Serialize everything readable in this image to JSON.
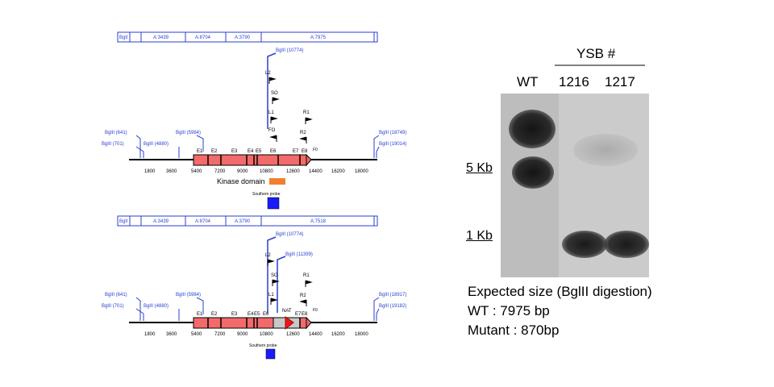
{
  "map_wt": {
    "segments": [
      "BglI",
      "A:3439",
      "A:8704",
      "A:3790",
      "A:7975"
    ],
    "site_top": "BglII (10774)",
    "left_sites": [
      "BglII (641)",
      "BglII (701)",
      "BglII (4880)",
      "BglII (5984)"
    ],
    "right_sites": [
      "BglII (18749)",
      "BglII (19014)"
    ],
    "primers": [
      "L2",
      "SO",
      "L1",
      "FO",
      "R1",
      "R2",
      "F0"
    ],
    "exons": [
      "E1",
      "E2",
      "E3",
      "E4",
      "E5",
      "E6",
      "E7",
      "E8"
    ],
    "ticks": [
      "1800",
      "3600",
      "5400",
      "7200",
      "9000",
      "10800",
      "12600",
      "14400",
      "16200",
      "18000"
    ],
    "kinase_label": "Kinase domain",
    "probe_label": "Southern probe",
    "kinase_color": "#f08030",
    "probe_color": "#1a1aff"
  },
  "map_mut": {
    "segments": [
      "BglI",
      "A:3439",
      "A:8704",
      "A:3790",
      "A:7518"
    ],
    "site_top": "BglII (10774)",
    "site_top2": "BglII (11399)",
    "left_sites": [
      "BglII (641)",
      "BglII (701)",
      "BglII (4880)",
      "BglII (5984)"
    ],
    "right_sites": [
      "BglII (18917)",
      "BglII (19182)"
    ],
    "primers": [
      "L2",
      "SO",
      "L1",
      "R1",
      "R2",
      "F0"
    ],
    "exons": [
      "E1",
      "E2",
      "E3",
      "E4",
      "E5",
      "E6",
      "E7",
      "E8"
    ],
    "nat_label": "NAT",
    "ticks": [
      "1800",
      "3600",
      "5400",
      "7200",
      "9000",
      "10800",
      "12600",
      "14400",
      "16200",
      "18000"
    ],
    "probe_label": "Southern probe",
    "nat_color": "#e8181a",
    "probe_color": "#1a1aff"
  },
  "blot": {
    "group_label": "YSB #",
    "lanes": [
      "WT",
      "1216",
      "1217"
    ],
    "markers": [
      "5 Kb",
      "1 Kb"
    ]
  },
  "notes": {
    "heading": "Expected size (BglII digestion)",
    "wt": "WT : 7975 bp",
    "mutant": "Mutant : 870bp"
  },
  "colors": {
    "exon": "#f26a6a",
    "grey_region": "#c8c8c8",
    "map_blue": "#2b3fd0"
  }
}
